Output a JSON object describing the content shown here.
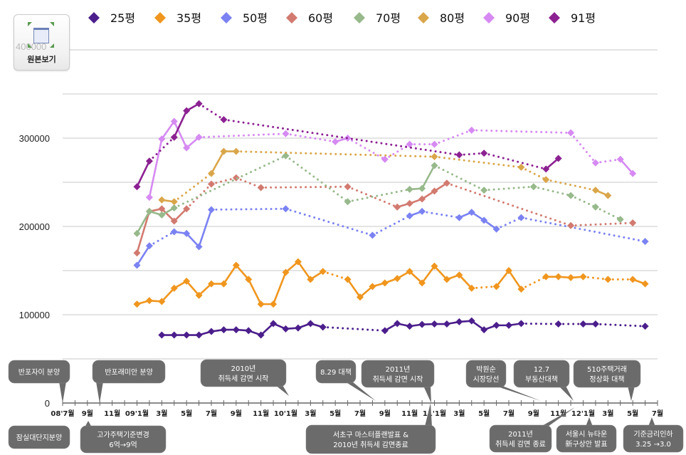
{
  "toolbar": {
    "original_view_label": "원본보기"
  },
  "chart_data": {
    "type": "line",
    "title": "",
    "xlabel": "",
    "ylabel": "",
    "ylim": [
      0,
      400000
    ],
    "yticks": [
      "0",
      "100000",
      "200000",
      "300000",
      "400000"
    ],
    "grid": true,
    "grid_step": 50000,
    "legend_position": "top",
    "x_range": [
      "2008-07",
      "2012-07"
    ],
    "xtick_labels": [
      "08'7월",
      "9월",
      "11월",
      "09'1월",
      "3월",
      "5월",
      "7월",
      "9월",
      "11월",
      "10'1월",
      "3월",
      "5월",
      "7월",
      "9월",
      "11월",
      "11'1월",
      "3월",
      "5월",
      "7월",
      "9월",
      "11월",
      "12'1월",
      "3월",
      "5월",
      "7월"
    ],
    "series": [
      {
        "name": "25평",
        "color": "#4b1e8c",
        "points": [
          [
            "2009-03",
            77000
          ],
          [
            "2009-04",
            77000
          ],
          [
            "2009-05",
            77000
          ],
          [
            "2009-06",
            77000
          ],
          [
            "2009-07",
            81000
          ],
          [
            "2009-08",
            83000
          ],
          [
            "2009-09",
            83000
          ],
          [
            "2009-10",
            82000
          ],
          [
            "2009-11",
            77000
          ],
          [
            "2009-12",
            90000
          ],
          [
            "2010-01",
            84000
          ],
          [
            "2010-02",
            85000
          ],
          [
            "2010-03",
            90000
          ],
          [
            "2010-04",
            86000
          ],
          [
            "2010-09",
            82000
          ],
          [
            "2010-10",
            90000
          ],
          [
            "2010-11",
            87000
          ],
          [
            "2010-12",
            89000
          ],
          [
            "2011-01",
            89500
          ],
          [
            "2011-02",
            89500
          ],
          [
            "2011-03",
            92000
          ],
          [
            "2011-04",
            93000
          ],
          [
            "2011-05",
            83000
          ],
          [
            "2011-06",
            88000
          ],
          [
            "2011-07",
            88000
          ],
          [
            "2011-08",
            90000
          ],
          [
            "2011-11",
            89500
          ],
          [
            "2012-01",
            89500
          ],
          [
            "2012-02",
            89500
          ],
          [
            "2012-06",
            87000
          ]
        ]
      },
      {
        "name": "35평",
        "color": "#f0961e",
        "points": [
          [
            "2009-01",
            112000
          ],
          [
            "2009-02",
            116000
          ],
          [
            "2009-03",
            115000
          ],
          [
            "2009-04",
            130000
          ],
          [
            "2009-05",
            138000
          ],
          [
            "2009-06",
            122000
          ],
          [
            "2009-07",
            135000
          ],
          [
            "2009-08",
            135000
          ],
          [
            "2009-09",
            156000
          ],
          [
            "2009-10",
            140000
          ],
          [
            "2009-11",
            112000
          ],
          [
            "2009-12",
            112000
          ],
          [
            "2010-01",
            148000
          ],
          [
            "2010-02",
            160000
          ],
          [
            "2010-03",
            140000
          ],
          [
            "2010-04",
            149000
          ],
          [
            "2010-06",
            140000
          ],
          [
            "2010-07",
            120000
          ],
          [
            "2010-08",
            132000
          ],
          [
            "2010-09",
            136000
          ],
          [
            "2010-10",
            141000
          ],
          [
            "2010-11",
            149000
          ],
          [
            "2010-12",
            136000
          ],
          [
            "2011-01",
            155000
          ],
          [
            "2011-02",
            140000
          ],
          [
            "2011-03",
            145000
          ],
          [
            "2011-04",
            130000
          ],
          [
            "2011-06",
            132000
          ],
          [
            "2011-07",
            150000
          ],
          [
            "2011-08",
            129000
          ],
          [
            "2011-10",
            143000
          ],
          [
            "2011-11",
            143000
          ],
          [
            "2011-12",
            142000
          ],
          [
            "2012-01",
            143000
          ],
          [
            "2012-03",
            140000
          ],
          [
            "2012-05",
            140000
          ],
          [
            "2012-06",
            135000
          ]
        ]
      },
      {
        "name": "50평",
        "color": "#7b82f2",
        "points": [
          [
            "2009-01",
            156000
          ],
          [
            "2009-02",
            178000
          ],
          [
            "2009-04",
            194000
          ],
          [
            "2009-05",
            192000
          ],
          [
            "2009-06",
            177000
          ],
          [
            "2009-07",
            219000
          ],
          [
            "2010-01",
            220000
          ],
          [
            "2010-08",
            190000
          ],
          [
            "2010-11",
            212000
          ],
          [
            "2010-12",
            217000
          ],
          [
            "2011-03",
            210000
          ],
          [
            "2011-04",
            216000
          ],
          [
            "2011-05",
            207000
          ],
          [
            "2011-06",
            197000
          ],
          [
            "2011-08",
            210000
          ],
          [
            "2012-06",
            183000
          ]
        ]
      },
      {
        "name": "60평",
        "color": "#d27a70",
        "points": [
          [
            "2009-01",
            170000
          ],
          [
            "2009-02",
            217000
          ],
          [
            "2009-03",
            220000
          ],
          [
            "2009-04",
            206000
          ],
          [
            "2009-05",
            220000
          ],
          [
            "2009-07",
            248000
          ],
          [
            "2009-09",
            255000
          ],
          [
            "2009-11",
            244000
          ],
          [
            "2010-06",
            245000
          ],
          [
            "2010-10",
            222000
          ],
          [
            "2010-11",
            226000
          ],
          [
            "2010-12",
            231000
          ],
          [
            "2011-01",
            240000
          ],
          [
            "2011-02",
            249000
          ],
          [
            "2011-12",
            201000
          ],
          [
            "2012-05",
            204000
          ]
        ]
      },
      {
        "name": "70평",
        "color": "#97b98b",
        "points": [
          [
            "2009-01",
            192000
          ],
          [
            "2009-02",
            217000
          ],
          [
            "2009-03",
            213000
          ],
          [
            "2009-04",
            221000
          ],
          [
            "2010-01",
            280000
          ],
          [
            "2010-06",
            228000
          ],
          [
            "2010-11",
            242000
          ],
          [
            "2010-12",
            243000
          ],
          [
            "2011-01",
            269000
          ],
          [
            "2011-05",
            241000
          ],
          [
            "2011-09",
            245000
          ],
          [
            "2011-12",
            235000
          ],
          [
            "2012-02",
            222000
          ],
          [
            "2012-04",
            208000
          ]
        ]
      },
      {
        "name": "80평",
        "color": "#daa64a",
        "points": [
          [
            "2009-03",
            230000
          ],
          [
            "2009-04",
            228000
          ],
          [
            "2009-07",
            260000
          ],
          [
            "2009-08",
            285000
          ],
          [
            "2009-09",
            285000
          ],
          [
            "2011-01",
            279000
          ],
          [
            "2011-08",
            267000
          ],
          [
            "2011-10",
            253000
          ],
          [
            "2012-02",
            241000
          ],
          [
            "2012-03",
            235000
          ]
        ]
      },
      {
        "name": "90평",
        "color": "#d68af2",
        "points": [
          [
            "2009-02",
            233000
          ],
          [
            "2009-03",
            299000
          ],
          [
            "2009-04",
            319000
          ],
          [
            "2009-05",
            289000
          ],
          [
            "2009-06",
            301000
          ],
          [
            "2010-01",
            305000
          ],
          [
            "2010-05",
            296000
          ],
          [
            "2010-06",
            300000
          ],
          [
            "2010-09",
            276000
          ],
          [
            "2010-11",
            293000
          ],
          [
            "2011-01",
            293000
          ],
          [
            "2011-04",
            309000
          ],
          [
            "2011-12",
            306000
          ],
          [
            "2012-02",
            272000
          ],
          [
            "2012-04",
            276000
          ],
          [
            "2012-05",
            260000
          ]
        ]
      },
      {
        "name": "91평",
        "color": "#8c2192",
        "points": [
          [
            "2009-01",
            245000
          ],
          [
            "2009-02",
            274000
          ],
          [
            "2009-04",
            301000
          ],
          [
            "2009-05",
            331000
          ],
          [
            "2009-06",
            339000
          ],
          [
            "2009-08",
            321000
          ],
          [
            "2011-03",
            281000
          ],
          [
            "2011-05",
            283000
          ],
          [
            "2011-10",
            265000
          ],
          [
            "2011-11",
            277000
          ]
        ]
      }
    ],
    "annotations": [
      {
        "lines": [
          "반포자이 분양"
        ]
      },
      {
        "lines": [
          "반포래미안 분양"
        ]
      },
      {
        "lines": [
          "2010년",
          "취득세 감면 시작"
        ]
      },
      {
        "lines": [
          "8.29 대책"
        ]
      },
      {
        "lines": [
          "2011년",
          "취득세 감면 시작"
        ]
      },
      {
        "lines": [
          "박원순",
          "시장당선"
        ]
      },
      {
        "lines": [
          "12.7",
          "부동산대책"
        ]
      },
      {
        "lines": [
          "510주택거래",
          "정상화 대책"
        ]
      },
      {
        "lines": [
          "잠실대단지분양"
        ]
      },
      {
        "lines": [
          "고가주택기준변경",
          "6억→9억"
        ]
      },
      {
        "lines": [
          "서초구 마스터플랜발표 &",
          "2010년 취득세 감면종료"
        ]
      },
      {
        "lines": [
          "2011년",
          "취득세 감면 종료"
        ]
      },
      {
        "lines": [
          "서울시 뉴타운",
          "新구상안 발표"
        ]
      },
      {
        "lines": [
          "기준금리인하",
          "3.25 →3.0"
        ]
      }
    ]
  }
}
